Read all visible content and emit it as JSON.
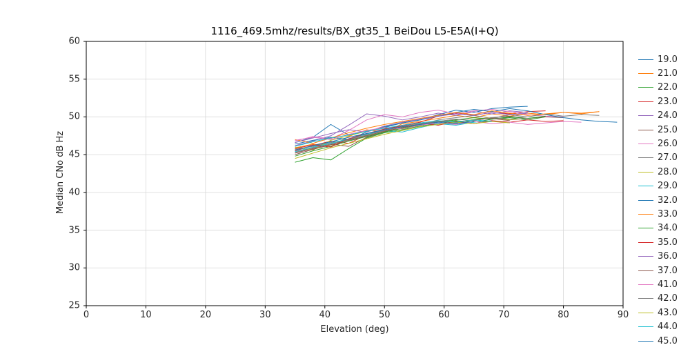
{
  "chart_data": {
    "type": "line",
    "title": "1116_469.5mhz/results/BX_gt35_1 BeiDou L5-E5A(I+Q)",
    "xlabel": "Elevation (deg)",
    "ylabel": "Median CNo dB Hz",
    "xlim": [
      0,
      90
    ],
    "ylim": [
      25,
      60
    ],
    "x_ticks": [
      0,
      10,
      20,
      30,
      40,
      50,
      60,
      70,
      80,
      90
    ],
    "y_ticks": [
      25,
      30,
      35,
      40,
      45,
      50,
      55,
      60
    ],
    "grid": true,
    "legend_position": "right-outside",
    "series": [
      {
        "label": "19.0",
        "color": "#1f77b4",
        "x": [
          35,
          38,
          41,
          44,
          47,
          50,
          53,
          56,
          59,
          62,
          65,
          68,
          71,
          74
        ],
        "y": [
          46.6,
          47.3,
          49.0,
          47.6,
          48.1,
          48.6,
          49.2,
          49.6,
          50.3,
          50.9,
          50.6,
          51.1,
          51.3,
          51.4
        ]
      },
      {
        "label": "21.0",
        "color": "#ff7f0e",
        "x": [
          35,
          38,
          41,
          44,
          47,
          50,
          53,
          56,
          59,
          62,
          65,
          68,
          71,
          74,
          77,
          80,
          83,
          86
        ],
        "y": [
          45.9,
          46.4,
          46.1,
          47.4,
          48.3,
          48.0,
          49.1,
          49.4,
          49.8,
          50.2,
          49.9,
          50.4,
          50.1,
          50.5,
          50.3,
          50.6,
          50.4,
          50.7
        ]
      },
      {
        "label": "22.0",
        "color": "#2ca02c",
        "x": [
          35,
          38,
          41,
          44,
          47,
          50,
          53,
          56,
          59,
          62,
          65,
          68,
          71,
          74,
          77
        ],
        "y": [
          44.0,
          44.6,
          44.3,
          45.8,
          47.2,
          47.9,
          48.3,
          48.8,
          49.1,
          49.5,
          49.3,
          49.7,
          49.9,
          49.6,
          50.0
        ]
      },
      {
        "label": "23.0",
        "color": "#d62728",
        "x": [
          35,
          38,
          41,
          44,
          47,
          50,
          53,
          56,
          59,
          62,
          65,
          68,
          71,
          74,
          77
        ],
        "y": [
          45.5,
          46.2,
          46.8,
          46.5,
          47.6,
          48.4,
          48.9,
          49.3,
          50.1,
          50.5,
          50.2,
          50.6,
          50.4,
          50.7,
          50.8
        ]
      },
      {
        "label": "24.0",
        "color": "#9467bd",
        "x": [
          35,
          38,
          41,
          44,
          47,
          50,
          53,
          56,
          59,
          62,
          65,
          68,
          71,
          74
        ],
        "y": [
          46.2,
          46.8,
          47.5,
          48.9,
          50.4,
          50.1,
          49.6,
          50.0,
          50.5,
          50.2,
          50.7,
          50.4,
          50.8,
          50.6
        ]
      },
      {
        "label": "25.0",
        "color": "#8c564b",
        "x": [
          35,
          38,
          41,
          44,
          47,
          50,
          53,
          56,
          59,
          62,
          65,
          68,
          71,
          74,
          77,
          80
        ],
        "y": [
          45.2,
          45.8,
          46.4,
          46.1,
          47.3,
          48.0,
          48.5,
          48.9,
          49.4,
          49.7,
          49.5,
          49.9,
          50.1,
          49.8,
          50.0,
          49.9
        ]
      },
      {
        "label": "26.0",
        "color": "#e377c2",
        "x": [
          35,
          38,
          41,
          44,
          47,
          50,
          53,
          56,
          59,
          62,
          65,
          68,
          71,
          74,
          77,
          80
        ],
        "y": [
          46.8,
          47.4,
          47.1,
          48.2,
          49.6,
          50.3,
          50.0,
          50.6,
          50.9,
          50.4,
          50.8,
          51.0,
          50.7,
          50.3,
          50.1,
          50.0
        ]
      },
      {
        "label": "27.0",
        "color": "#7f7f7f",
        "x": [
          35,
          38,
          41,
          44,
          47,
          50,
          53,
          56,
          59,
          62,
          65,
          68,
          71,
          74,
          77,
          80,
          83,
          86
        ],
        "y": [
          45.7,
          46.1,
          46.6,
          47.0,
          47.8,
          48.3,
          48.7,
          49.0,
          49.6,
          49.9,
          50.2,
          49.8,
          50.3,
          50.0,
          50.4,
          50.1,
          50.3,
          50.2
        ]
      },
      {
        "label": "28.0",
        "color": "#bcbd22",
        "x": [
          35,
          38,
          41,
          44,
          47,
          50,
          53,
          56,
          59,
          62,
          65,
          68,
          71,
          74
        ],
        "y": [
          46.0,
          45.6,
          46.9,
          47.5,
          48.1,
          48.6,
          48.4,
          49.0,
          49.5,
          49.2,
          49.7,
          49.9,
          49.6,
          49.8
        ]
      },
      {
        "label": "29.0",
        "color": "#17becf",
        "x": [
          35,
          38,
          41,
          44,
          47,
          50,
          53,
          56,
          59,
          62,
          65,
          68,
          71
        ],
        "y": [
          45.4,
          46.0,
          46.5,
          47.1,
          47.7,
          48.2,
          48.0,
          48.6,
          49.1,
          48.9,
          49.3,
          49.5,
          49.2
        ]
      },
      {
        "label": "32.0",
        "color": "#1f77b4",
        "x": [
          35,
          38,
          41,
          44,
          47,
          50,
          53,
          56,
          59,
          62,
          65,
          68,
          71,
          74,
          77,
          80,
          83,
          86,
          89
        ],
        "y": [
          46.4,
          46.9,
          47.3,
          47.0,
          48.0,
          48.7,
          49.2,
          49.6,
          50.1,
          50.6,
          51.0,
          50.7,
          51.1,
          50.8,
          50.3,
          49.9,
          49.6,
          49.4,
          49.3
        ]
      },
      {
        "label": "33.0",
        "color": "#ff7f0e",
        "x": [
          35,
          38,
          41,
          44,
          47,
          50,
          53,
          56,
          59,
          62,
          65,
          68,
          71,
          74,
          77,
          80,
          83,
          86
        ],
        "y": [
          47.0,
          46.5,
          47.2,
          47.9,
          48.5,
          49.0,
          49.4,
          49.8,
          50.2,
          50.6,
          50.3,
          50.8,
          50.5,
          50.2,
          50.4,
          50.6,
          50.5,
          50.7
        ]
      },
      {
        "label": "34.0",
        "color": "#2ca02c",
        "x": [
          35,
          38,
          41,
          44,
          47,
          50,
          53,
          56,
          59,
          62,
          65,
          68,
          71,
          74,
          77
        ],
        "y": [
          44.8,
          45.5,
          46.1,
          46.8,
          47.4,
          48.0,
          48.5,
          48.9,
          49.3,
          49.6,
          49.9,
          49.7,
          50.0,
          49.8,
          50.1
        ]
      },
      {
        "label": "35.0",
        "color": "#d62728",
        "x": [
          35,
          38,
          41,
          44,
          47,
          50,
          53,
          56,
          59,
          62,
          65,
          68,
          71,
          74,
          77,
          80
        ],
        "y": [
          45.8,
          46.3,
          46.0,
          47.1,
          47.8,
          48.4,
          48.8,
          49.2,
          48.9,
          49.4,
          49.1,
          49.5,
          49.3,
          49.6,
          49.4,
          49.5
        ]
      },
      {
        "label": "36.0",
        "color": "#9467bd",
        "x": [
          35,
          38,
          41,
          44,
          47,
          50,
          53,
          56,
          59,
          62,
          65,
          68,
          71,
          74
        ],
        "y": [
          46.6,
          47.2,
          47.8,
          48.3,
          48.0,
          48.8,
          49.3,
          49.7,
          50.1,
          50.4,
          50.2,
          50.6,
          50.3,
          50.5
        ]
      },
      {
        "label": "37.0",
        "color": "#8c564b",
        "x": [
          35,
          38,
          41,
          44,
          47,
          50,
          53,
          56,
          59,
          62,
          65,
          68,
          71
        ],
        "y": [
          45.0,
          45.7,
          46.3,
          46.9,
          47.5,
          48.1,
          48.6,
          49.0,
          49.4,
          49.2,
          49.6,
          49.8,
          49.5
        ]
      },
      {
        "label": "41.0",
        "color": "#e377c2",
        "x": [
          35,
          38,
          41,
          44,
          47,
          50,
          53,
          56,
          59,
          62,
          65,
          68,
          71,
          74,
          77,
          80,
          83
        ],
        "y": [
          46.9,
          47.3,
          47.0,
          47.7,
          48.2,
          48.6,
          48.4,
          48.9,
          49.2,
          49.0,
          49.4,
          49.1,
          49.3,
          49.0,
          49.2,
          49.4,
          49.3
        ]
      },
      {
        "label": "42.0",
        "color": "#7f7f7f",
        "x": [
          35,
          38,
          41,
          44,
          47,
          50,
          53,
          56,
          59,
          62,
          65,
          68,
          71,
          74
        ],
        "y": [
          45.3,
          45.9,
          46.4,
          47.0,
          47.6,
          48.2,
          48.7,
          49.1,
          49.4,
          49.7,
          49.5,
          49.9,
          49.7,
          49.8
        ]
      },
      {
        "label": "43.0",
        "color": "#bcbd22",
        "x": [
          35,
          38,
          41,
          44,
          47,
          50,
          53,
          56,
          59,
          62,
          65,
          68,
          71
        ],
        "y": [
          44.5,
          45.2,
          45.9,
          46.5,
          47.1,
          47.7,
          48.2,
          48.7,
          49.0,
          49.3,
          49.1,
          49.4,
          49.2
        ]
      },
      {
        "label": "44.0",
        "color": "#17becf",
        "x": [
          35,
          38,
          41,
          44,
          47,
          50,
          53,
          56,
          59,
          62,
          65,
          68
        ],
        "y": [
          46.1,
          46.7,
          47.2,
          47.6,
          48.1,
          48.5,
          48.9,
          49.2,
          49.5,
          49.3,
          49.6,
          49.4
        ]
      },
      {
        "label": "45.0",
        "color": "#1f77b4",
        "x": [
          35,
          38,
          41,
          44,
          47,
          50,
          53,
          56,
          59,
          62,
          65
        ],
        "y": [
          45.6,
          46.2,
          46.7,
          47.3,
          47.8,
          48.3,
          48.7,
          49.0,
          49.3,
          49.1,
          49.4
        ]
      }
    ]
  },
  "colors": {
    "grid": "#d8d8d8",
    "axis": "#000000",
    "text": "#262626",
    "background": "#ffffff"
  }
}
